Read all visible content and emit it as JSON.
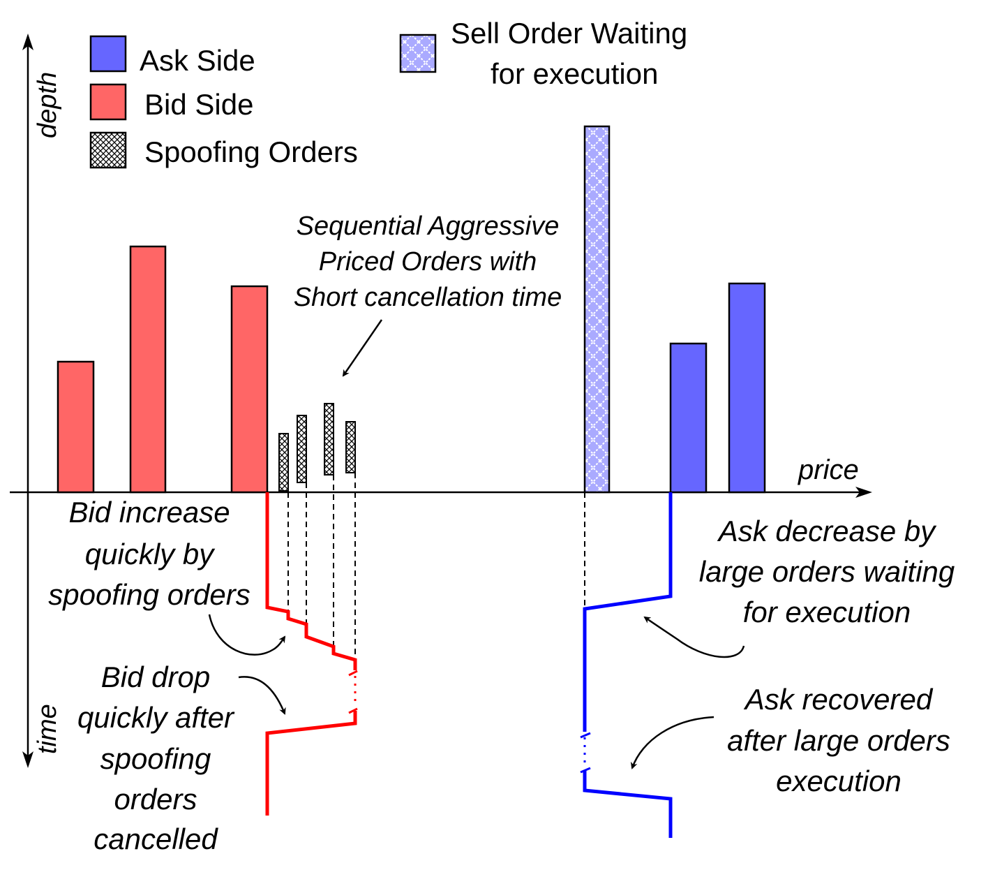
{
  "axes": {
    "y_label": "depth",
    "x_label": "price",
    "time_label": "time"
  },
  "legend": {
    "ask": "Ask Side",
    "bid": "Bid Side",
    "spoof": "Spoofing Orders",
    "sell_waiting_line1": "Sell Order Waiting",
    "sell_waiting_line2": "for execution"
  },
  "annotations": {
    "sequential": [
      "Sequential Aggressive",
      "Priced Orders with",
      "Short cancellation time"
    ],
    "bid_increase": [
      "Bid increase",
      "quickly by",
      "spoofing orders"
    ],
    "bid_drop": [
      "Bid drop",
      "quickly after",
      "spoofing",
      "orders",
      "cancelled"
    ],
    "ask_decrease": [
      "Ask decrease by",
      "large orders waiting",
      "for execution"
    ],
    "ask_recovered": [
      "Ask recovered",
      "after large orders",
      "execution"
    ]
  },
  "colors": {
    "bid_fill": "#ff6666",
    "ask_fill": "#6666ff",
    "sell_waiting_fill": "#aaaaff",
    "bid_line": "#ff0000",
    "ask_line": "#0000ff",
    "outline": "#000000"
  }
}
